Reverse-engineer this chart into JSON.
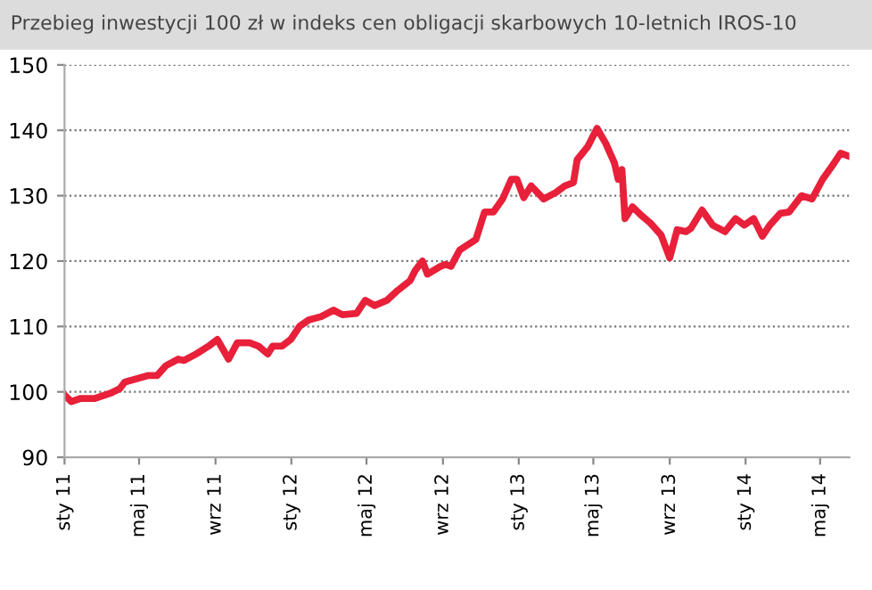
{
  "chart_data": {
    "type": "line",
    "title": "Przebieg inwestycji 100 zł w indeks cen obligacji skarbowych 10-letnich IROS-10",
    "x": [
      "2011-01-01",
      "2011-01-12",
      "2011-01-27",
      "2011-02-19",
      "2011-03-16",
      "2011-03-31",
      "2011-04-08",
      "2011-05-16",
      "2011-05-30",
      "2011-06-13",
      "2011-07-03",
      "2011-07-12",
      "2011-08-01",
      "2011-08-21",
      "2011-09-04",
      "2011-09-13",
      "2011-09-22",
      "2011-10-06",
      "2011-10-26",
      "2011-11-09",
      "2011-11-24",
      "2011-12-02",
      "2011-12-17",
      "2011-12-31",
      "2012-01-14",
      "2012-01-29",
      "2012-02-18",
      "2012-03-09",
      "2012-03-23",
      "2012-04-15",
      "2012-04-29",
      "2012-05-14",
      "2012-06-03",
      "2012-06-20",
      "2012-07-10",
      "2012-07-18",
      "2012-07-30",
      "2012-08-07",
      "2012-08-28",
      "2012-09-05",
      "2012-09-14",
      "2012-09-28",
      "2012-10-24",
      "2012-11-07",
      "2012-11-21",
      "2012-12-06",
      "2012-12-20",
      "2012-12-29",
      "2013-01-09",
      "2013-01-21",
      "2013-02-10",
      "2013-03-02",
      "2013-03-16",
      "2013-03-30",
      "2013-04-05",
      "2013-04-22",
      "2013-05-07",
      "2013-05-21",
      "2013-06-04",
      "2013-06-10",
      "2013-06-16",
      "2013-06-21",
      "2013-07-03",
      "2013-07-17",
      "2013-08-01",
      "2013-08-18",
      "2013-08-24",
      "2013-09-01",
      "2013-09-13",
      "2013-09-27",
      "2013-10-05",
      "2013-10-23",
      "2013-11-09",
      "2013-11-29",
      "2013-12-16",
      "2013-12-30",
      "2014-01-14",
      "2014-01-28",
      "2014-02-09",
      "2014-02-26",
      "2014-03-12",
      "2014-04-01",
      "2014-04-18",
      "2014-05-05",
      "2014-05-20",
      "2014-06-03",
      "2014-06-17"
    ],
    "series": [
      {
        "color": "#e8203a",
        "values": [
          99.5,
          98.5,
          99,
          99,
          99.8,
          100.5,
          101.5,
          102.5,
          102.5,
          104,
          105,
          104.8,
          105.8,
          107,
          108,
          106.5,
          105,
          107.5,
          107.5,
          107,
          105.8,
          107,
          107,
          108,
          110,
          111,
          111.5,
          112.5,
          111.8,
          112,
          114,
          113.2,
          114,
          115.5,
          117,
          118.5,
          120,
          118,
          119.2,
          119.5,
          119.2,
          121.7,
          123.3,
          127.5,
          127.5,
          129.5,
          132.5,
          132.5,
          129.7,
          131.5,
          129.5,
          130.5,
          131.5,
          132,
          135.5,
          137.5,
          140.3,
          138,
          135,
          132.5,
          134,
          126.5,
          128.3,
          127,
          125.8,
          124,
          122.5,
          120.5,
          124.8,
          124.5,
          125,
          127.8,
          125.5,
          124.5,
          126.5,
          125.5,
          126.5,
          123.8,
          125.5,
          127.3,
          127.5,
          130,
          129.5,
          132.5,
          134.5,
          136.5,
          136
        ]
      }
    ],
    "xlim": [
      "2011-01-01",
      "2014-06-17"
    ],
    "xticks": [
      {
        "value": "2011-01-01",
        "label": "sty 11"
      },
      {
        "value": "2011-05-01",
        "label": "maj 11"
      },
      {
        "value": "2011-09-01",
        "label": "wrz 11"
      },
      {
        "value": "2012-01-01",
        "label": "sty 12"
      },
      {
        "value": "2012-05-01",
        "label": "maj 12"
      },
      {
        "value": "2012-09-01",
        "label": "wrz 12"
      },
      {
        "value": "2013-01-01",
        "label": "sty 13"
      },
      {
        "value": "2013-05-01",
        "label": "maj 13"
      },
      {
        "value": "2013-09-01",
        "label": "wrz 13"
      },
      {
        "value": "2014-01-01",
        "label": "sty 14"
      },
      {
        "value": "2014-05-01",
        "label": "maj 14"
      }
    ],
    "ylim": [
      90,
      150
    ],
    "yticks": [
      90,
      100,
      110,
      120,
      130,
      140,
      150
    ],
    "grid": "y",
    "marker": "none",
    "line_style": "solid"
  }
}
